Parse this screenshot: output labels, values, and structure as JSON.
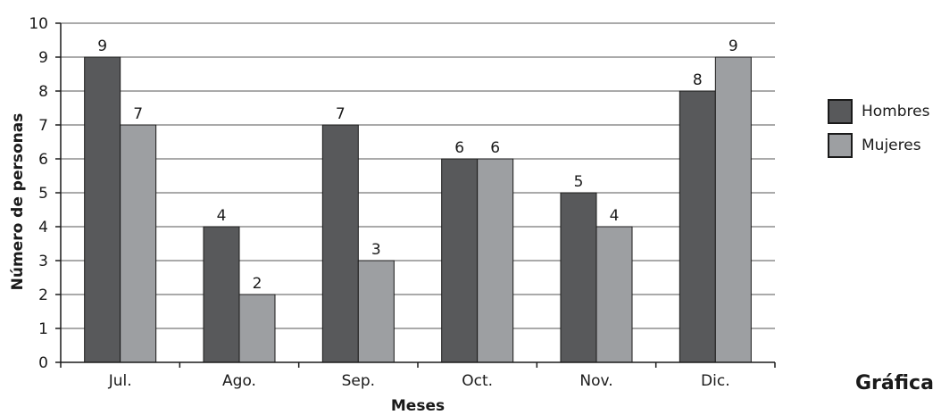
{
  "caption": "Gráfica",
  "chart_data": {
    "type": "bar",
    "title": "",
    "xlabel": "Meses",
    "ylabel": "Número de personas",
    "categories": [
      "Jul.",
      "Ago.",
      "Sep.",
      "Oct.",
      "Nov.",
      "Dic."
    ],
    "ylim": [
      0,
      10
    ],
    "yticks": [
      0,
      1,
      2,
      3,
      4,
      5,
      6,
      7,
      8,
      9,
      10
    ],
    "grid": true,
    "legend_position": "right",
    "series": [
      {
        "name": "Hombres",
        "values": [
          9,
          4,
          7,
          6,
          5,
          8
        ],
        "color": "#58595b"
      },
      {
        "name": "Mujeres",
        "values": [
          7,
          2,
          3,
          6,
          4,
          9
        ],
        "color": "#9d9fa2"
      }
    ]
  }
}
